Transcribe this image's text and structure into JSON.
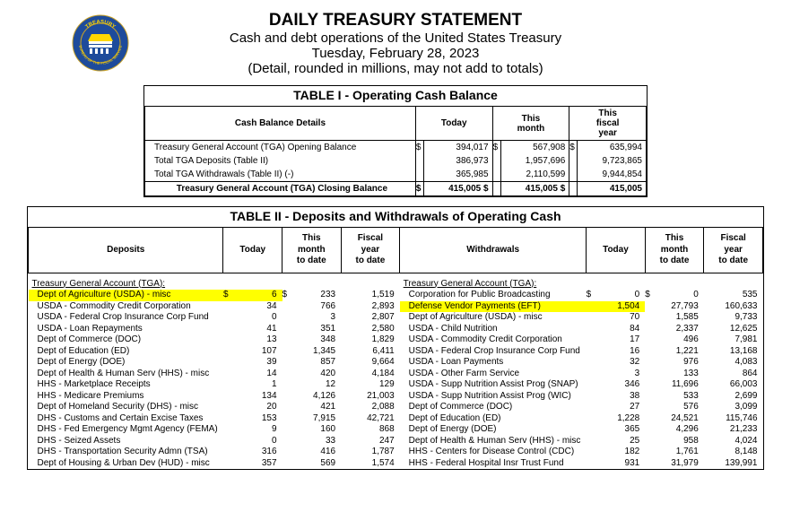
{
  "header": {
    "title": "DAILY TREASURY STATEMENT",
    "line1": "Cash and debt operations of the United States Treasury",
    "line2": "Tuesday, February 28, 2023",
    "line3": "(Detail, rounded in millions, may not add to totals)"
  },
  "table1": {
    "title": "TABLE I - Operating Cash Balance",
    "cols": [
      "Cash Balance Details",
      "Today",
      "This\nmonth",
      "This\nfiscal\nyear"
    ],
    "rows": [
      {
        "label": "Treasury General Account (TGA) Opening Balance",
        "today": "394,017",
        "month": "567,908",
        "fy": "635,994"
      },
      {
        "label": "Total TGA Deposits (Table II)",
        "today": "386,973",
        "month": "1,957,696",
        "fy": "9,723,865"
      },
      {
        "label": "Total TGA Withdrawals (Table II) (-)",
        "today": "365,985",
        "month": "2,110,599",
        "fy": "9,944,854"
      }
    ],
    "closing": {
      "label": "Treasury General Account (TGA) Closing Balance",
      "today": "415,005",
      "month": "415,005",
      "fy": "415,005"
    }
  },
  "table2": {
    "title": "TABLE II - Deposits and Withdrawals of Operating Cash",
    "cols": [
      "Deposits",
      "Today",
      "This\nmonth\nto date",
      "Fiscal\nyear\nto date",
      "Withdrawals",
      "Today",
      "This\nmonth\nto date",
      "Fiscal\nyear\nto date"
    ],
    "section": "Treasury General Account (TGA):",
    "rows": [
      {
        "dl": "Dept of Agriculture (USDA) - misc",
        "dt": "6",
        "dm": "233",
        "df": "1,519",
        "wl": "Corporation for Public Broadcasting",
        "wt": "0",
        "wm": "0",
        "wf": "535",
        "dhl": true,
        "whl": false,
        "dthl": true,
        "wthl": false
      },
      {
        "dl": "USDA - Commodity Credit Corporation",
        "dt": "34",
        "dm": "766",
        "df": "2,893",
        "wl": "Defense Vendor Payments (EFT)",
        "wt": "1,504",
        "wm": "27,793",
        "wf": "160,633",
        "dhl": false,
        "whl": true,
        "dthl": false,
        "wthl": true
      },
      {
        "dl": "USDA - Federal Crop Insurance Corp Fund",
        "dt": "0",
        "dm": "3",
        "df": "2,807",
        "wl": "Dept of Agriculture (USDA) - misc",
        "wt": "70",
        "wm": "1,585",
        "wf": "9,733"
      },
      {
        "dl": "USDA - Loan Repayments",
        "dt": "41",
        "dm": "351",
        "df": "2,580",
        "wl": "USDA - Child Nutrition",
        "wt": "84",
        "wm": "2,337",
        "wf": "12,625"
      },
      {
        "dl": "Dept of Commerce (DOC)",
        "dt": "13",
        "dm": "348",
        "df": "1,829",
        "wl": "USDA - Commodity Credit Corporation",
        "wt": "17",
        "wm": "496",
        "wf": "7,981"
      },
      {
        "dl": "Dept of Education (ED)",
        "dt": "107",
        "dm": "1,345",
        "df": "6,411",
        "wl": "USDA - Federal Crop Insurance Corp Fund",
        "wt": "16",
        "wm": "1,221",
        "wf": "13,168"
      },
      {
        "dl": "Dept of Energy (DOE)",
        "dt": "39",
        "dm": "857",
        "df": "9,664",
        "wl": "USDA - Loan Payments",
        "wt": "32",
        "wm": "976",
        "wf": "4,083"
      },
      {
        "dl": "Dept of Health & Human Serv (HHS) - misc",
        "dt": "14",
        "dm": "420",
        "df": "4,184",
        "wl": "USDA - Other Farm Service",
        "wt": "3",
        "wm": "133",
        "wf": "864"
      },
      {
        "dl": "HHS - Marketplace Receipts",
        "dt": "1",
        "dm": "12",
        "df": "129",
        "wl": "USDA - Supp Nutrition Assist Prog (SNAP)",
        "wt": "346",
        "wm": "11,696",
        "wf": "66,003"
      },
      {
        "dl": "HHS - Medicare Premiums",
        "dt": "134",
        "dm": "4,126",
        "df": "21,003",
        "wl": "USDA - Supp Nutrition Assist Prog (WIC)",
        "wt": "38",
        "wm": "533",
        "wf": "2,699"
      },
      {
        "dl": "Dept of Homeland Security (DHS) - misc",
        "dt": "20",
        "dm": "421",
        "df": "2,088",
        "wl": "Dept of Commerce (DOC)",
        "wt": "27",
        "wm": "576",
        "wf": "3,099"
      },
      {
        "dl": "DHS - Customs and Certain Excise Taxes",
        "dt": "153",
        "dm": "7,915",
        "df": "42,721",
        "wl": "Dept of Education (ED)",
        "wt": "1,228",
        "wm": "24,521",
        "wf": "115,746"
      },
      {
        "dl": "DHS - Fed Emergency Mgmt Agency (FEMA)",
        "dt": "9",
        "dm": "160",
        "df": "868",
        "wl": "Dept of Energy (DOE)",
        "wt": "365",
        "wm": "4,296",
        "wf": "21,233"
      },
      {
        "dl": "DHS - Seized Assets",
        "dt": "0",
        "dm": "33",
        "df": "247",
        "wl": "Dept of Health & Human Serv (HHS) - misc",
        "wt": "25",
        "wm": "958",
        "wf": "4,024"
      },
      {
        "dl": "DHS - Transportation Security Admn (TSA)",
        "dt": "316",
        "dm": "416",
        "df": "1,787",
        "wl": "HHS - Centers for Disease Control (CDC)",
        "wt": "182",
        "wm": "1,761",
        "wf": "8,148"
      },
      {
        "dl": "Dept of Housing & Urban Dev (HUD) - misc",
        "dt": "357",
        "dm": "569",
        "df": "1,574",
        "wl": "HHS - Federal Hospital Insr Trust Fund",
        "wt": "931",
        "wm": "31,979",
        "wf": "139,991"
      }
    ]
  }
}
